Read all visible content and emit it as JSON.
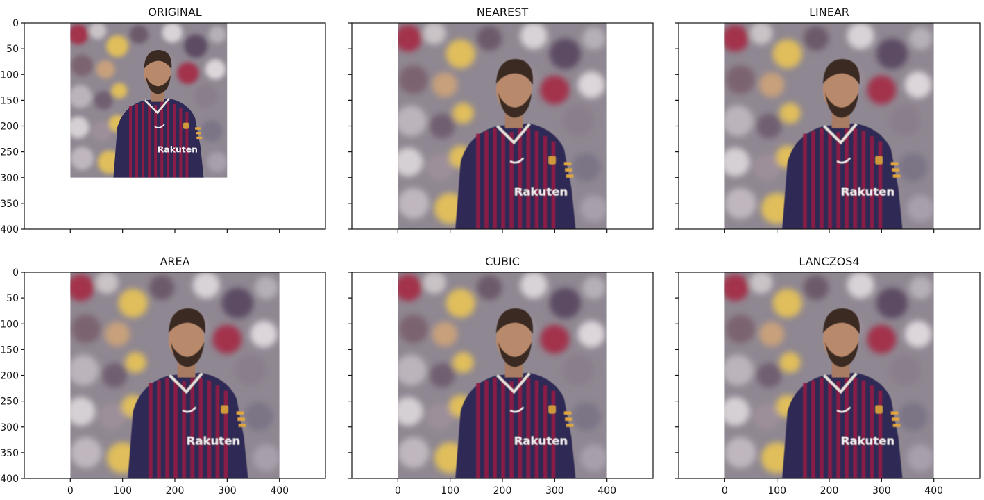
{
  "figure": {
    "panels": [
      {
        "title": "ORIGINAL",
        "image_extent": [
          300,
          300
        ]
      },
      {
        "title": "NEAREST",
        "image_extent": [
          400,
          400
        ]
      },
      {
        "title": "LINEAR",
        "image_extent": [
          400,
          400
        ]
      },
      {
        "title": "AREA",
        "image_extent": [
          400,
          400
        ]
      },
      {
        "title": "CUBIC",
        "image_extent": [
          400,
          400
        ]
      },
      {
        "title": "LANCZOS4",
        "image_extent": [
          400,
          400
        ]
      }
    ],
    "x_ticks": [
      "0",
      "100",
      "200",
      "300",
      "400"
    ],
    "y_ticks": [
      "0",
      "50",
      "100",
      "150",
      "200",
      "250",
      "300",
      "350",
      "400"
    ],
    "x_tick_values": [
      0,
      100,
      200,
      300,
      400
    ],
    "y_tick_values": [
      0,
      50,
      100,
      150,
      200,
      250,
      300,
      350,
      400
    ],
    "x_range": [
      -88,
      488
    ],
    "y_range": [
      0,
      400
    ],
    "image_subject": "soccer player in striped jersey against blurred crowd",
    "colors": {
      "jersey_dark": "#2e2a55",
      "jersey_stripe": "#8a1d45",
      "skin": "#b9896c",
      "hair": "#3a2a24",
      "crowd_yellow": "#e0be5b",
      "crowd_red": "#a3324c",
      "crowd_gray": "#9a9aa8"
    }
  }
}
